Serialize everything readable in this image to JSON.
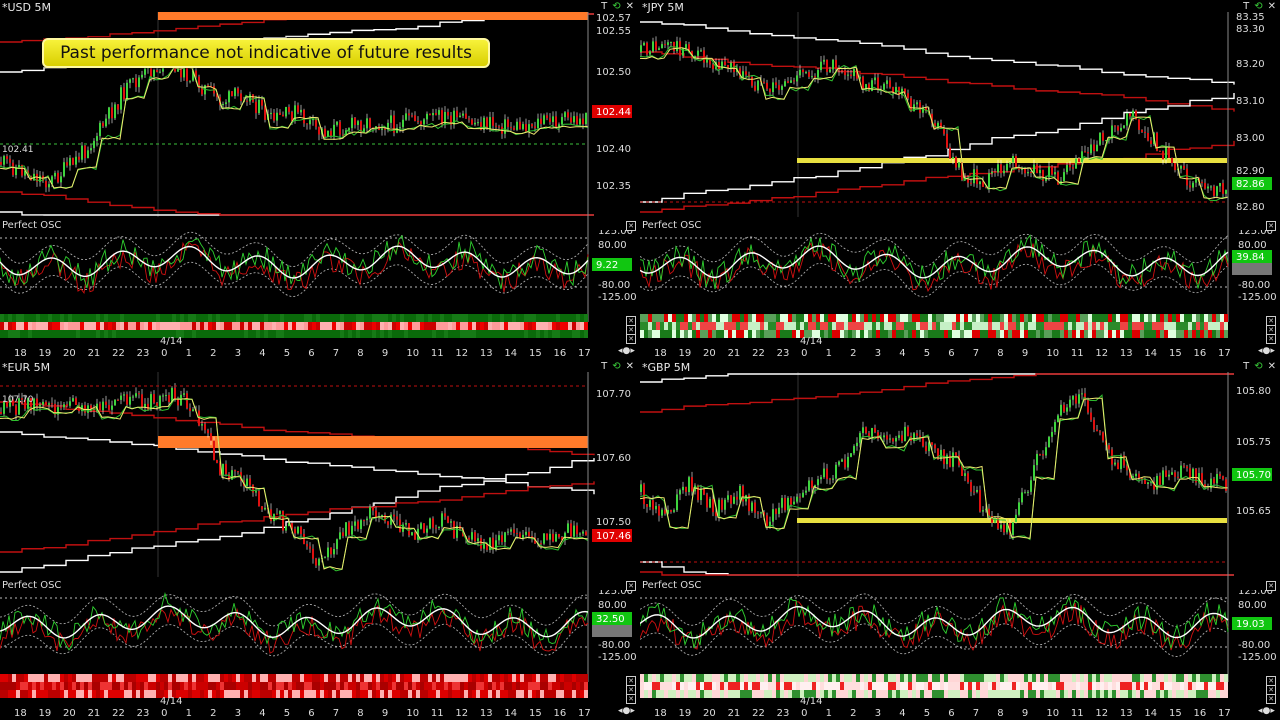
{
  "disclaimer": "Past performance not indicative of future results",
  "osc_name": "Perfect OSC",
  "toolbar": {
    "t_label": "T",
    "sync_icon": "⟲",
    "close_icon": "✕"
  },
  "colors": {
    "bull": "#3ed43e",
    "bear": "#e01010",
    "white": "#ffffff",
    "yellow": "#f0e870",
    "band": "#ff7a2a",
    "gold_line": "#e8e040",
    "price_red": "#e00000",
    "price_green": "#11c611"
  },
  "panels": [
    {
      "id": "usd",
      "title": "*USD 5M",
      "price_labels": [
        "102.57",
        "102.55",
        "102.50",
        "102.45",
        "102.40",
        "102.35"
      ],
      "current_price": "102.44",
      "current_color": "#e00000",
      "left_label": "102.41",
      "osc_labels": [
        "125.00",
        "80.00",
        "-80.00",
        "-125.00"
      ],
      "osc_value": "9.22",
      "x_ticks": [
        "18",
        "19",
        "20",
        "21",
        "22",
        "23",
        "0",
        "1",
        "2",
        "3",
        "4",
        "5",
        "6",
        "7",
        "8",
        "9",
        "10",
        "11",
        "12",
        "13",
        "14",
        "15",
        "16",
        "17"
      ],
      "date": "4/14"
    },
    {
      "id": "jpy",
      "title": "*JPY 5M",
      "price_labels": [
        "83.35",
        "83.30",
        "83.20",
        "83.10",
        "83.00",
        "82.90",
        "82.80"
      ],
      "current_price": "82.86",
      "current_color": "#11c611",
      "left_label": "",
      "osc_labels": [
        "125.00",
        "80.00",
        "0.00",
        "-80.00",
        "-125.00"
      ],
      "osc_value": "39.84",
      "x_ticks": [
        "18",
        "19",
        "20",
        "21",
        "22",
        "23",
        "0",
        "1",
        "2",
        "3",
        "4",
        "5",
        "6",
        "7",
        "8",
        "9",
        "10",
        "11",
        "12",
        "13",
        "14",
        "15",
        "16",
        "17"
      ],
      "date": "4/14"
    },
    {
      "id": "eur",
      "title": "*EUR 5M",
      "price_labels": [
        "107.70",
        "107.60",
        "107.50"
      ],
      "current_price": "107.46",
      "current_color": "#e00000",
      "left_label": "107.70",
      "osc_labels": [
        "125.00",
        "80.00",
        "0.00",
        "-80.00",
        "-125.00"
      ],
      "osc_value": "32.50",
      "x_ticks": [
        "18",
        "19",
        "20",
        "21",
        "22",
        "23",
        "0",
        "1",
        "2",
        "3",
        "4",
        "5",
        "6",
        "7",
        "8",
        "9",
        "10",
        "11",
        "12",
        "13",
        "14",
        "15",
        "16",
        "17"
      ],
      "date": "4/14"
    },
    {
      "id": "gbp",
      "title": "*GBP 5M",
      "price_labels": [
        "105.80",
        "105.75",
        "105.65"
      ],
      "current_price": "105.70",
      "current_color": "#11c611",
      "left_label": "",
      "osc_labels": [
        "125.00",
        "80.00",
        "-80.00",
        "-125.00"
      ],
      "osc_value": "19.03",
      "x_ticks": [
        "18",
        "19",
        "20",
        "21",
        "22",
        "23",
        "0",
        "1",
        "2",
        "3",
        "4",
        "5",
        "6",
        "7",
        "8",
        "9",
        "10",
        "11",
        "12",
        "13",
        "14",
        "15",
        "16",
        "17"
      ],
      "date": "4/14"
    }
  ]
}
